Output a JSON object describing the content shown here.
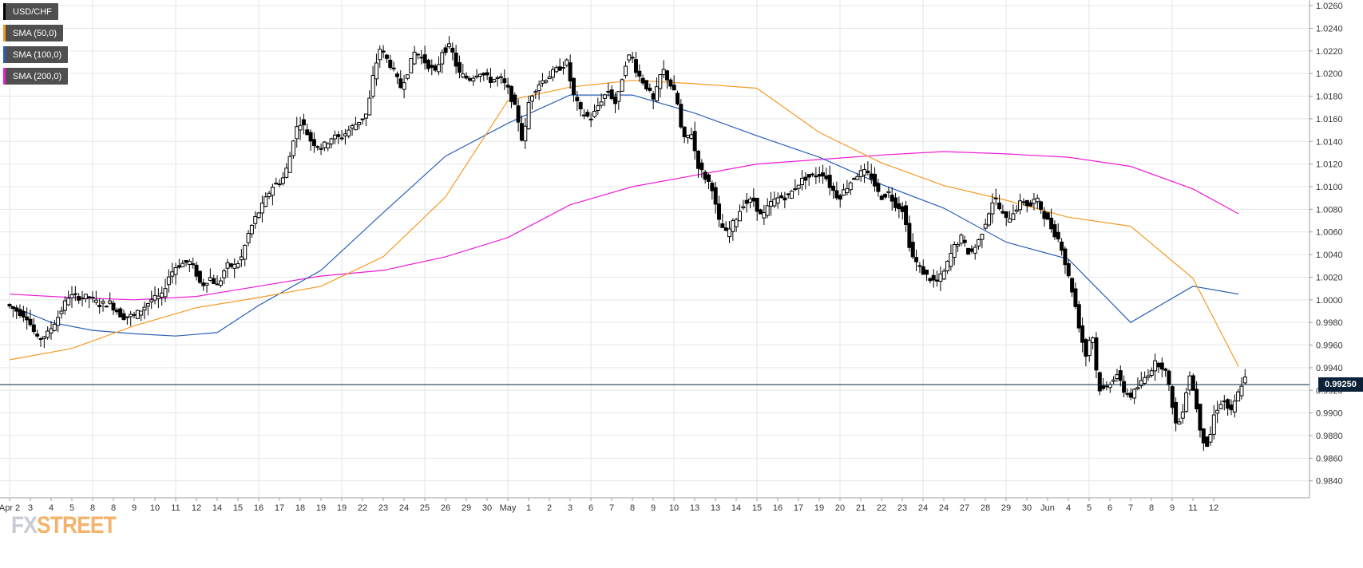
{
  "legend": {
    "symbol": "USD/CHF",
    "sma50": "SMA (50,0)",
    "sma100": "SMA (100,0)",
    "sma200": "SMA (200,0)"
  },
  "logo": {
    "fx": "FX",
    "street": "STREET"
  },
  "price_label": "0.99250",
  "colors": {
    "background": "#ffffff",
    "grid": "#e3e6ea",
    "candle": "#000000",
    "sma50": "#f59a23",
    "sma100": "#2a5fb8",
    "sma200": "#ee1bd8",
    "price_line": "#0b2138",
    "legend_bg": "#4f4f4f"
  },
  "chart_data": {
    "type": "candlestick",
    "grid": true,
    "legend_position": "top-left",
    "ylim": [
      0.9825,
      1.0265
    ],
    "y_ticks": [
      "1.0260",
      "1.0240",
      "1.0220",
      "1.0200",
      "1.0180",
      "1.0160",
      "1.0140",
      "1.0120",
      "1.0100",
      "1.0080",
      "1.0060",
      "1.0040",
      "1.0020",
      "1.0000",
      "0.9980",
      "0.9960",
      "0.9940",
      "0.9920",
      "0.9900",
      "0.9880",
      "0.9860",
      "0.9840"
    ],
    "x_ticks": [
      "Apr 2",
      "3",
      "4",
      "5",
      "8",
      "8",
      "9",
      "10",
      "11",
      "12",
      "14",
      "15",
      "16",
      "17",
      "18",
      "19",
      "19",
      "22",
      "23",
      "24",
      "25",
      "26",
      "29",
      "30",
      "May",
      "1",
      "2",
      "3",
      "6",
      "7",
      "8",
      "9",
      "10",
      "13",
      "13",
      "14",
      "15",
      "16",
      "17",
      "19",
      "20",
      "21",
      "22",
      "23",
      "24",
      "24",
      "27",
      "28",
      "29",
      "30",
      "Jun",
      "4",
      "5",
      "6",
      "7",
      "8",
      "9",
      "11",
      "12"
    ],
    "current_price": 0.9925,
    "sma_50": {
      "name": "SMA (50,0)",
      "points": [
        [
          0,
          0.9947
        ],
        [
          3,
          0.9957
        ],
        [
          6,
          0.9977
        ],
        [
          9,
          0.9993
        ],
        [
          12,
          1.0002
        ],
        [
          15,
          1.0012
        ],
        [
          18,
          1.0038
        ],
        [
          21,
          1.0091
        ],
        [
          24,
          1.0176
        ],
        [
          27,
          1.0188
        ],
        [
          30,
          1.0194
        ],
        [
          33,
          1.0191
        ],
        [
          36,
          1.0187
        ],
        [
          39,
          1.0148
        ],
        [
          42,
          1.0121
        ],
        [
          45,
          1.0101
        ],
        [
          48,
          1.0088
        ],
        [
          51,
          1.0073
        ],
        [
          54,
          1.0065
        ],
        [
          57,
          1.0019
        ],
        [
          59.2,
          0.9941
        ]
      ]
    },
    "sma_100": {
      "name": "SMA (100,0)",
      "points": [
        [
          0,
          0.9995
        ],
        [
          2,
          0.998
        ],
        [
          4,
          0.9973
        ],
        [
          6,
          0.997
        ],
        [
          8,
          0.9968
        ],
        [
          10,
          0.9971
        ],
        [
          12,
          0.9995
        ],
        [
          15,
          1.0026
        ],
        [
          18,
          1.0077
        ],
        [
          21,
          1.0127
        ],
        [
          24,
          1.0156
        ],
        [
          27,
          1.0181
        ],
        [
          30,
          1.0181
        ],
        [
          33,
          1.0165
        ],
        [
          36,
          1.0145
        ],
        [
          39,
          1.0126
        ],
        [
          42,
          1.0102
        ],
        [
          45,
          1.0081
        ],
        [
          48,
          1.0051
        ],
        [
          51,
          1.0036
        ],
        [
          54,
          0.998
        ],
        [
          57,
          1.0012
        ],
        [
          59.2,
          1.0005
        ]
      ]
    },
    "sma_200": {
      "name": "SMA (200,0)",
      "points": [
        [
          0,
          1.0005
        ],
        [
          3,
          1.0002
        ],
        [
          6,
          1.0
        ],
        [
          9,
          1.0003
        ],
        [
          12,
          1.0012
        ],
        [
          15,
          1.0021
        ],
        [
          18,
          1.0026
        ],
        [
          21,
          1.0038
        ],
        [
          24,
          1.0055
        ],
        [
          27,
          1.0084
        ],
        [
          30,
          1.01
        ],
        [
          33,
          1.011
        ],
        [
          36,
          1.012
        ],
        [
          39,
          1.0124
        ],
        [
          42,
          1.0128
        ],
        [
          45,
          1.0131
        ],
        [
          48,
          1.0129
        ],
        [
          51,
          1.0126
        ],
        [
          54,
          1.0118
        ],
        [
          57,
          1.0098
        ],
        [
          59.2,
          1.0076
        ]
      ]
    },
    "anchors": [
      [
        0,
        0.9996
      ],
      [
        1,
        0.9985
      ],
      [
        1.5,
        0.9965
      ],
      [
        2,
        0.997
      ],
      [
        2.5,
        0.9985
      ],
      [
        3,
        1.0003
      ],
      [
        4,
        1.0002
      ],
      [
        4.5,
        0.9996
      ],
      [
        5,
        0.9997
      ],
      [
        5.6,
        0.9985
      ],
      [
        6.2,
        0.9986
      ],
      [
        7,
        1.0
      ],
      [
        7.5,
        1.0003
      ],
      [
        7.8,
        1.002
      ],
      [
        8.2,
        1.003
      ],
      [
        8.8,
        1.0034
      ],
      [
        9.1,
        1.0026
      ],
      [
        9.4,
        1.0012
      ],
      [
        9.8,
        1.002
      ],
      [
        10.2,
        1.0012
      ],
      [
        10.6,
        1.003
      ],
      [
        11,
        1.003
      ],
      [
        11.3,
        1.0035
      ],
      [
        11.7,
        1.006
      ],
      [
        12,
        1.0072
      ],
      [
        12.4,
        1.0085
      ],
      [
        12.8,
        1.01
      ],
      [
        13.3,
        1.0106
      ],
      [
        13.6,
        1.012
      ],
      [
        13.9,
        1.0149
      ],
      [
        14.2,
        1.0158
      ],
      [
        14.7,
        1.014
      ],
      [
        15.2,
        1.0134
      ],
      [
        15.7,
        1.0144
      ],
      [
        16.1,
        1.0143
      ],
      [
        16.5,
        1.015
      ],
      [
        17,
        1.0158
      ],
      [
        17.4,
        1.0165
      ],
      [
        17.7,
        1.02
      ],
      [
        18,
        1.0222
      ],
      [
        18.5,
        1.0208
      ],
      [
        19,
        1.0188
      ],
      [
        19.3,
        1.02
      ],
      [
        19.7,
        1.022
      ],
      [
        20.2,
        1.021
      ],
      [
        20.7,
        1.02
      ],
      [
        21,
        1.022
      ],
      [
        21.4,
        1.0224
      ],
      [
        21.8,
        1.02
      ],
      [
        22.3,
        1.0195
      ],
      [
        22.8,
        1.0202
      ],
      [
        23.3,
        1.0194
      ],
      [
        23.8,
        1.0196
      ],
      [
        24.2,
        1.0185
      ],
      [
        24.6,
        1.0165
      ],
      [
        24.9,
        1.0137
      ],
      [
        25.2,
        1.0178
      ],
      [
        25.6,
        1.019
      ],
      [
        26,
        1.0196
      ],
      [
        26.5,
        1.0203
      ],
      [
        27,
        1.021
      ],
      [
        27.3,
        1.0182
      ],
      [
        27.7,
        1.0165
      ],
      [
        28.2,
        1.016
      ],
      [
        28.6,
        1.0175
      ],
      [
        29,
        1.0185
      ],
      [
        29.4,
        1.0172
      ],
      [
        29.8,
        1.0208
      ],
      [
        30.1,
        1.0218
      ],
      [
        30.4,
        1.02
      ],
      [
        30.8,
        1.019
      ],
      [
        31.2,
        1.0175
      ],
      [
        31.6,
        1.0205
      ],
      [
        32,
        1.019
      ],
      [
        32.3,
        1.0178
      ],
      [
        32.6,
        1.014
      ],
      [
        33,
        1.0148
      ],
      [
        33.3,
        1.012
      ],
      [
        33.6,
        1.011
      ],
      [
        34,
        1.01
      ],
      [
        34.3,
        1.007
      ],
      [
        34.7,
        1.0058
      ],
      [
        35.1,
        1.007
      ],
      [
        35.5,
        1.0085
      ],
      [
        36,
        1.0088
      ],
      [
        36.4,
        1.0072
      ],
      [
        36.8,
        1.0085
      ],
      [
        37.2,
        1.009
      ],
      [
        37.7,
        1.0092
      ],
      [
        38.1,
        1.0102
      ],
      [
        38.5,
        1.0108
      ],
      [
        39,
        1.011
      ],
      [
        39.4,
        1.0112
      ],
      [
        39.7,
        1.01
      ],
      [
        40.1,
        1.009
      ],
      [
        40.5,
        1.01
      ],
      [
        40.9,
        1.011
      ],
      [
        41.3,
        1.0113
      ],
      [
        41.7,
        1.0108
      ],
      [
        42.1,
        1.009
      ],
      [
        42.5,
        1.0095
      ],
      [
        42.8,
        1.0085
      ],
      [
        43.2,
        1.008
      ],
      [
        43.6,
        1.004
      ],
      [
        44,
        1.0028
      ],
      [
        44.4,
        1.002
      ],
      [
        44.8,
        1.0015
      ],
      [
        45.2,
        1.0025
      ],
      [
        45.6,
        1.0045
      ],
      [
        46,
        1.0055
      ],
      [
        46.4,
        1.004
      ],
      [
        46.8,
        1.005
      ],
      [
        47.2,
        1.007
      ],
      [
        47.6,
        1.0092
      ],
      [
        47.9,
        1.0078
      ],
      [
        48.2,
        1.007
      ],
      [
        48.6,
        1.008
      ],
      [
        49,
        1.0088
      ],
      [
        49.3,
        1.0082
      ],
      [
        49.6,
        1.009
      ],
      [
        50,
        1.0075
      ],
      [
        50.4,
        1.0062
      ],
      [
        50.8,
        1.005
      ],
      [
        51.1,
        1.0025
      ],
      [
        51.4,
        1.0005
      ],
      [
        51.7,
        0.9975
      ],
      [
        52,
        0.995
      ],
      [
        52.3,
        0.9975
      ],
      [
        52.6,
        0.9922
      ],
      [
        52.9,
        0.992
      ],
      [
        53.2,
        0.9928
      ],
      [
        53.5,
        0.9935
      ],
      [
        53.8,
        0.992
      ],
      [
        54.2,
        0.9915
      ],
      [
        54.6,
        0.9925
      ],
      [
        55,
        0.9935
      ],
      [
        55.4,
        0.9945
      ],
      [
        55.8,
        0.994
      ],
      [
        56.1,
        0.9915
      ],
      [
        56.4,
        0.9885
      ],
      [
        56.7,
        0.9905
      ],
      [
        57,
        0.9935
      ],
      [
        57.3,
        0.991
      ],
      [
        57.6,
        0.9878
      ],
      [
        57.9,
        0.987
      ],
      [
        58.2,
        0.99
      ],
      [
        58.6,
        0.9912
      ],
      [
        59,
        0.99
      ],
      [
        59.3,
        0.9915
      ],
      [
        59.6,
        0.993
      ]
    ]
  }
}
